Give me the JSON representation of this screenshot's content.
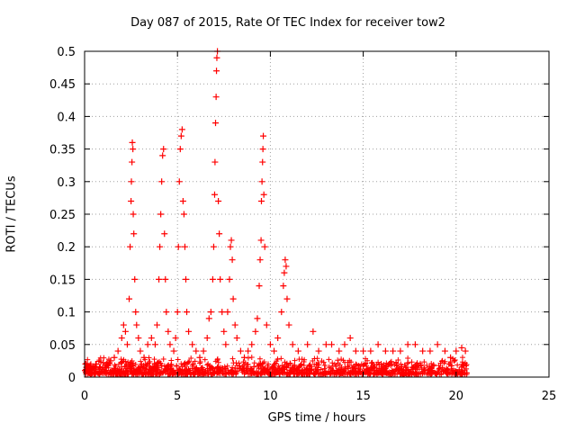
{
  "chart_data": {
    "type": "scatter",
    "title": "Day 087 of 2015, Rate Of TEC Index for receiver tow2",
    "xlabel": "GPS time / hours",
    "ylabel": "ROTI / TECUs",
    "xlim": [
      0,
      25
    ],
    "ylim": [
      0,
      0.5
    ],
    "xticks": [
      0,
      5,
      10,
      15,
      20,
      25
    ],
    "xtick_labels": [
      "0",
      "5",
      "10",
      "15",
      "20",
      "25"
    ],
    "yticks": [
      0,
      0.05,
      0.1,
      0.15,
      0.2,
      0.25,
      0.3,
      0.35,
      0.4,
      0.45,
      0.5
    ],
    "ytick_labels": [
      "0",
      "0.05",
      "0.1",
      "0.15",
      "0.2",
      "0.25",
      "0.3",
      "0.35",
      "0.4",
      "0.45",
      "0.5"
    ],
    "grid": true,
    "marker": "+",
    "color": "#ff0000",
    "series": [
      {
        "name": "ROTI",
        "points": [
          [
            0.05,
            0.02
          ],
          [
            0.1,
            0.015
          ],
          [
            0.2,
            0.01
          ],
          [
            0.3,
            0.018
          ],
          [
            0.4,
            0.012
          ],
          [
            0.6,
            0.02
          ],
          [
            0.8,
            0.015
          ],
          [
            1.0,
            0.022
          ],
          [
            1.2,
            0.018
          ],
          [
            1.4,
            0.025
          ],
          [
            1.6,
            0.03
          ],
          [
            1.8,
            0.04
          ],
          [
            2.0,
            0.06
          ],
          [
            2.1,
            0.08
          ],
          [
            2.2,
            0.07
          ],
          [
            2.3,
            0.05
          ],
          [
            2.4,
            0.12
          ],
          [
            2.45,
            0.2
          ],
          [
            2.5,
            0.27
          ],
          [
            2.52,
            0.3
          ],
          [
            2.55,
            0.33
          ],
          [
            2.57,
            0.36
          ],
          [
            2.6,
            0.35
          ],
          [
            2.62,
            0.25
          ],
          [
            2.65,
            0.22
          ],
          [
            2.7,
            0.15
          ],
          [
            2.75,
            0.1
          ],
          [
            2.8,
            0.08
          ],
          [
            2.9,
            0.06
          ],
          [
            3.0,
            0.04
          ],
          [
            3.2,
            0.03
          ],
          [
            3.4,
            0.05
          ],
          [
            3.6,
            0.06
          ],
          [
            3.8,
            0.05
          ],
          [
            3.9,
            0.08
          ],
          [
            4.0,
            0.15
          ],
          [
            4.05,
            0.2
          ],
          [
            4.1,
            0.25
          ],
          [
            4.15,
            0.3
          ],
          [
            4.2,
            0.34
          ],
          [
            4.25,
            0.35
          ],
          [
            4.3,
            0.22
          ],
          [
            4.35,
            0.15
          ],
          [
            4.4,
            0.1
          ],
          [
            4.5,
            0.07
          ],
          [
            4.6,
            0.05
          ],
          [
            4.8,
            0.04
          ],
          [
            4.9,
            0.06
          ],
          [
            5.0,
            0.1
          ],
          [
            5.05,
            0.2
          ],
          [
            5.1,
            0.3
          ],
          [
            5.15,
            0.35
          ],
          [
            5.2,
            0.37
          ],
          [
            5.25,
            0.38
          ],
          [
            5.3,
            0.27
          ],
          [
            5.35,
            0.25
          ],
          [
            5.4,
            0.2
          ],
          [
            5.45,
            0.15
          ],
          [
            5.5,
            0.1
          ],
          [
            5.6,
            0.07
          ],
          [
            5.8,
            0.05
          ],
          [
            6.0,
            0.04
          ],
          [
            6.2,
            0.03
          ],
          [
            6.4,
            0.04
          ],
          [
            6.6,
            0.06
          ],
          [
            6.7,
            0.09
          ],
          [
            6.8,
            0.1
          ],
          [
            6.9,
            0.15
          ],
          [
            6.95,
            0.2
          ],
          [
            7.0,
            0.28
          ],
          [
            7.02,
            0.33
          ],
          [
            7.05,
            0.39
          ],
          [
            7.08,
            0.43
          ],
          [
            7.1,
            0.47
          ],
          [
            7.12,
            0.49
          ],
          [
            7.15,
            0.5
          ],
          [
            7.2,
            0.27
          ],
          [
            7.25,
            0.22
          ],
          [
            7.3,
            0.15
          ],
          [
            7.4,
            0.1
          ],
          [
            7.5,
            0.07
          ],
          [
            7.6,
            0.05
          ],
          [
            7.7,
            0.1
          ],
          [
            7.8,
            0.15
          ],
          [
            7.85,
            0.2
          ],
          [
            7.9,
            0.21
          ],
          [
            7.95,
            0.18
          ],
          [
            8.0,
            0.12
          ],
          [
            8.1,
            0.08
          ],
          [
            8.2,
            0.06
          ],
          [
            8.4,
            0.04
          ],
          [
            8.6,
            0.03
          ],
          [
            8.8,
            0.04
          ],
          [
            9.0,
            0.05
          ],
          [
            9.2,
            0.07
          ],
          [
            9.3,
            0.09
          ],
          [
            9.4,
            0.14
          ],
          [
            9.45,
            0.18
          ],
          [
            9.5,
            0.21
          ],
          [
            9.52,
            0.27
          ],
          [
            9.55,
            0.3
          ],
          [
            9.58,
            0.33
          ],
          [
            9.6,
            0.35
          ],
          [
            9.62,
            0.37
          ],
          [
            9.65,
            0.28
          ],
          [
            9.7,
            0.2
          ],
          [
            9.8,
            0.08
          ],
          [
            10.0,
            0.05
          ],
          [
            10.2,
            0.04
          ],
          [
            10.4,
            0.06
          ],
          [
            10.6,
            0.1
          ],
          [
            10.7,
            0.14
          ],
          [
            10.75,
            0.16
          ],
          [
            10.8,
            0.18
          ],
          [
            10.85,
            0.17
          ],
          [
            10.9,
            0.12
          ],
          [
            11.0,
            0.08
          ],
          [
            11.2,
            0.05
          ],
          [
            11.5,
            0.04
          ],
          [
            12.0,
            0.05
          ],
          [
            12.3,
            0.07
          ],
          [
            12.6,
            0.04
          ],
          [
            13.0,
            0.05
          ],
          [
            13.3,
            0.05
          ],
          [
            13.7,
            0.04
          ],
          [
            14.0,
            0.05
          ],
          [
            14.3,
            0.06
          ],
          [
            14.6,
            0.04
          ],
          [
            15.0,
            0.04
          ],
          [
            15.4,
            0.04
          ],
          [
            15.8,
            0.05
          ],
          [
            16.2,
            0.04
          ],
          [
            16.6,
            0.04
          ],
          [
            17.0,
            0.04
          ],
          [
            17.4,
            0.05
          ],
          [
            17.8,
            0.05
          ],
          [
            18.2,
            0.04
          ],
          [
            18.6,
            0.04
          ],
          [
            19.0,
            0.05
          ],
          [
            19.4,
            0.04
          ],
          [
            19.7,
            0.03
          ],
          [
            20.0,
            0.04
          ],
          [
            20.3,
            0.045
          ],
          [
            20.5,
            0.04
          ]
        ]
      }
    ]
  }
}
